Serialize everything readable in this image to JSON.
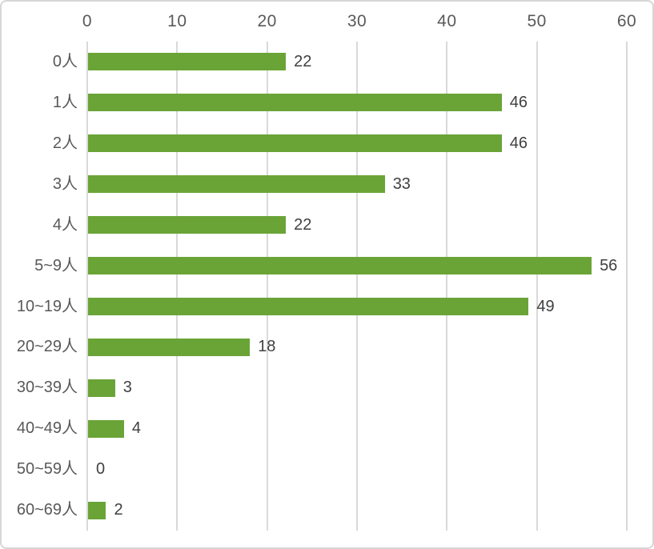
{
  "chart_data": {
    "type": "bar",
    "orientation": "horizontal",
    "categories": [
      "0人",
      "1人",
      "2人",
      "3人",
      "4人",
      "5~9人",
      "10~19人",
      "20~29人",
      "30~39人",
      "40~49人",
      "50~59人",
      "60~69人"
    ],
    "values": [
      22,
      46,
      46,
      33,
      22,
      56,
      49,
      18,
      3,
      4,
      0,
      2
    ],
    "title": "",
    "xlabel": "",
    "ylabel": "",
    "xlim": [
      0,
      60
    ],
    "xticks": [
      0,
      10,
      20,
      30,
      40,
      50,
      60
    ],
    "axis_position": "top",
    "grid": "vertical",
    "data_labels": true,
    "legend": "none"
  },
  "colors": {
    "bar": "#6aa437",
    "gridline": "#d9d9d9",
    "frame_border": "#d6d6d6",
    "tick_label": "#595959",
    "category_label": "#595959",
    "value_label": "#404040",
    "background": "#ffffff"
  }
}
